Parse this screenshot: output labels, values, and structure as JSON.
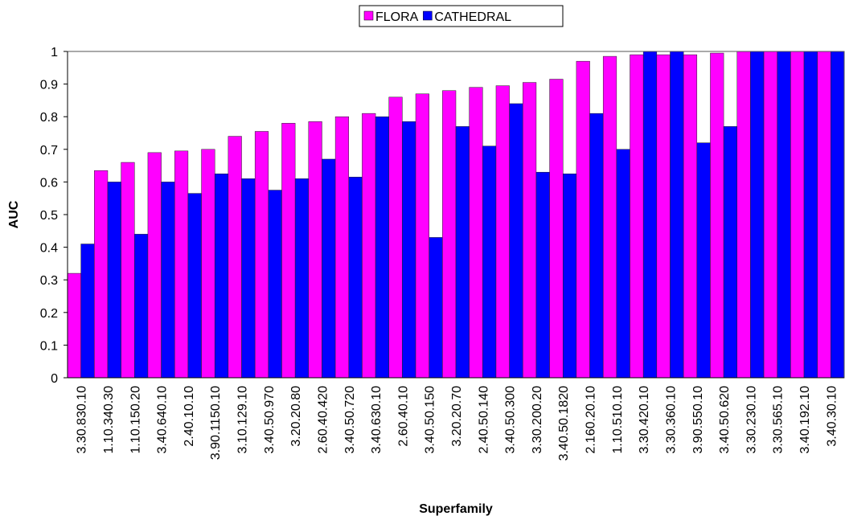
{
  "chart_data": {
    "type": "bar",
    "xlabel": "Superfamily",
    "ylabel": "AUC",
    "categories": [
      "3.30.830.10",
      "1.10.340.30",
      "1.10.150.20",
      "3.40.640.10",
      "2.40.10.10",
      "3.90.1150.10",
      "3.10.129.10",
      "3.40.50.970",
      "3.20.20.80",
      "2.60.40.420",
      "3.40.50.720",
      "3.40.630.10",
      "2.60.40.10",
      "3.40.50.150",
      "3.20.20.70",
      "2.40.50.140",
      "3.40.50.300",
      "3.30.200.20",
      "3.40.50.1820",
      "2.160.20.10",
      "1.10.510.10",
      "3.30.420.10",
      "3.30.360.10",
      "3.90.550.10",
      "3.40.50.620",
      "3.30.230.10",
      "3.30.565.10",
      "3.40.192.10",
      "3.40.30.10"
    ],
    "series": [
      {
        "name": "FLORA",
        "color": "#ff00ff",
        "values": [
          0.32,
          0.635,
          0.66,
          0.69,
          0.695,
          0.7,
          0.74,
          0.755,
          0.78,
          0.785,
          0.8,
          0.81,
          0.86,
          0.87,
          0.88,
          0.89,
          0.895,
          0.905,
          0.915,
          0.97,
          0.985,
          0.99,
          0.99,
          0.99,
          0.995,
          1,
          1,
          1,
          1
        ]
      },
      {
        "name": "CATHEDRAL",
        "color": "#0000ff",
        "values": [
          0.41,
          0.6,
          0.44,
          0.6,
          0.565,
          0.625,
          0.61,
          0.575,
          0.61,
          0.67,
          0.615,
          0.8,
          0.785,
          0.43,
          0.77,
          0.71,
          0.84,
          0.63,
          0.625,
          0.81,
          0.7,
          1,
          1,
          0.72,
          0.77,
          1,
          1,
          1,
          1
        ]
      }
    ],
    "ylim": [
      0,
      1
    ],
    "yticks": [
      0,
      0.1,
      0.2,
      0.3,
      0.4,
      0.5,
      0.6,
      0.7,
      0.8,
      0.9,
      1
    ],
    "grid": false,
    "legend": "top"
  }
}
